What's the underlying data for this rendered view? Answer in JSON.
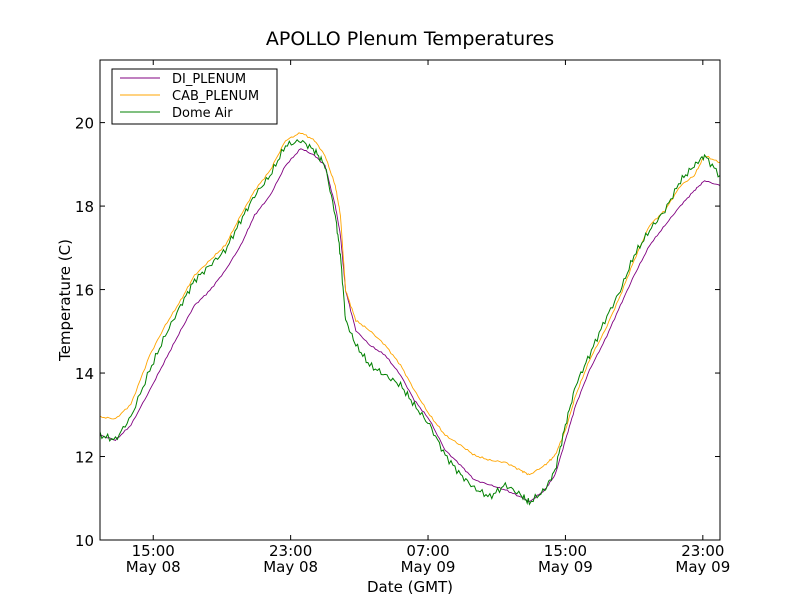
{
  "chart_data": {
    "type": "line",
    "title": "APOLLO Plenum Temperatures",
    "xlabel": "Date (GMT)",
    "ylabel": "Temperature (C)",
    "x_unit": "hours since May 08 00:00 GMT",
    "xlim": [
      11.9,
      48.0
    ],
    "ylim": [
      10,
      21.5
    ],
    "yticks": [
      10,
      12,
      14,
      16,
      18,
      20
    ],
    "ytick_labels": [
      "10",
      "12",
      "14",
      "16",
      "18",
      "20"
    ],
    "xticks": [
      15,
      23,
      31,
      39,
      47
    ],
    "xtick_labels": [
      [
        "15:00",
        "May 08"
      ],
      [
        "23:00",
        "May 08"
      ],
      [
        "07:00",
        "May 09"
      ],
      [
        "15:00",
        "May 09"
      ],
      [
        "23:00",
        "May 09"
      ]
    ],
    "grid": false,
    "legend_position": "top-left",
    "x": [
      11.9,
      12.8,
      13.7,
      14.8,
      15.7,
      16.6,
      17.4,
      18.3,
      19.2,
      20.1,
      20.9,
      21.8,
      22.7,
      23.6,
      24.4,
      25.0,
      25.6,
      25.9,
      26.2,
      26.8,
      27.6,
      28.5,
      29.4,
      30.2,
      31.1,
      32.0,
      32.9,
      33.7,
      34.6,
      35.5,
      36.4,
      36.9,
      37.8,
      38.4,
      39.0,
      39.6,
      40.4,
      41.3,
      42.2,
      43.0,
      43.9,
      44.8,
      45.7,
      46.5,
      47.1,
      48.0
    ],
    "series": [
      {
        "name": "DI_PLENUM",
        "color": "#800080",
        "values": [
          12.51,
          12.39,
          12.75,
          13.59,
          14.31,
          15.02,
          15.62,
          15.98,
          16.46,
          17.06,
          17.78,
          18.25,
          18.97,
          19.38,
          19.21,
          18.97,
          18.01,
          17.3,
          15.98,
          15.02,
          14.67,
          14.43,
          13.95,
          13.35,
          12.87,
          12.15,
          11.79,
          11.44,
          11.32,
          11.2,
          11.03,
          10.91,
          11.2,
          11.56,
          12.39,
          13.23,
          14.07,
          14.79,
          15.62,
          16.34,
          17.06,
          17.54,
          18.01,
          18.37,
          18.61,
          18.49
        ]
      },
      {
        "name": "CAB_PLENUM",
        "color": "#ffa500",
        "values": [
          12.95,
          12.9,
          13.25,
          14.43,
          15.14,
          15.74,
          16.34,
          16.7,
          17.06,
          17.78,
          18.37,
          18.85,
          19.57,
          19.76,
          19.57,
          19.21,
          18.49,
          17.78,
          15.98,
          15.26,
          15.02,
          14.67,
          14.19,
          13.59,
          12.99,
          12.51,
          12.27,
          12.03,
          11.91,
          11.86,
          11.67,
          11.56,
          11.79,
          12.03,
          12.63,
          13.47,
          14.31,
          15.02,
          15.86,
          16.7,
          17.54,
          17.9,
          18.49,
          18.73,
          19.21,
          19.04
        ]
      },
      {
        "name": "Dome Air",
        "color": "#008000",
        "values": [
          12.51,
          12.4,
          12.95,
          14.07,
          14.9,
          15.62,
          16.22,
          16.58,
          16.94,
          17.66,
          18.25,
          18.73,
          19.45,
          19.57,
          19.33,
          18.97,
          17.78,
          16.82,
          15.26,
          14.67,
          14.19,
          13.95,
          13.71,
          13.23,
          12.75,
          12.03,
          11.56,
          11.24,
          11.03,
          11.32,
          11.08,
          10.89,
          11.2,
          11.67,
          12.75,
          13.71,
          14.43,
          15.26,
          15.98,
          16.82,
          17.42,
          17.9,
          18.61,
          18.97,
          19.21,
          18.73
        ]
      }
    ]
  }
}
